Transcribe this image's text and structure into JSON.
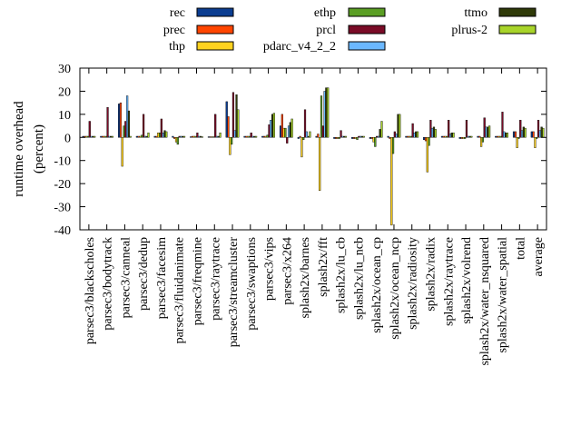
{
  "chart_data": {
    "type": "bar",
    "ylabel": "runtime overhead\n(percent)",
    "ylim": [
      -40,
      30
    ],
    "yticks": [
      -40,
      -30,
      -20,
      -10,
      0,
      10,
      20,
      30
    ],
    "grid": false,
    "legend_position": "top",
    "categories": [
      "parsec3/blackscholes",
      "parsec3/bodytrack",
      "parsec3/canneal",
      "parsec3/dedup",
      "parsec3/facesim",
      "parsec3/fluidanimate",
      "parsec3/freqmine",
      "parsec3/raytrace",
      "parsec3/streamcluster",
      "parsec3/swaptions",
      "parsec3/vips",
      "parsec3/x264",
      "splash2x/barnes",
      "splash2x/fft",
      "splash2x/lu_cb",
      "splash2x/lu_ncb",
      "splash2x/ocean_cp",
      "splash2x/ocean_ncp",
      "splash2x/radiosity",
      "splash2x/radix",
      "splash2x/raytrace",
      "splash2x/volrend",
      "splash2x/water_nsquared",
      "splash2x/water_spatial",
      "total",
      "average"
    ],
    "series": [
      {
        "name": "rec",
        "color": "#0b3d91",
        "values": [
          0.5,
          0.5,
          14.5,
          0.5,
          0.5,
          0.5,
          0.3,
          0.3,
          15.5,
          0.5,
          0.5,
          5.0,
          -0.5,
          0.5,
          -0.5,
          -0.5,
          -0.5,
          0.5,
          0.5,
          -1.0,
          0.5,
          -0.5,
          0.5,
          0.5,
          2.5,
          2.5
        ]
      },
      {
        "name": "prec",
        "color": "#ff4500",
        "values": [
          0.5,
          0.5,
          15.0,
          0.5,
          0.5,
          -0.5,
          0.5,
          0.3,
          9.0,
          0.5,
          0.5,
          10.0,
          0.5,
          1.5,
          -0.5,
          -0.5,
          -0.5,
          -0.5,
          0.5,
          -1.5,
          0.5,
          -0.5,
          0.5,
          0.5,
          2.5,
          2.5
        ]
      },
      {
        "name": "thp",
        "color": "#ffd21f",
        "values": [
          0.5,
          0.5,
          -12.5,
          0.5,
          2.0,
          -2.0,
          0.5,
          0.3,
          -7.5,
          0.5,
          0.5,
          4.0,
          -8.5,
          -23.0,
          -0.5,
          -0.5,
          -2.0,
          -38.0,
          0.5,
          -15.0,
          0.5,
          -0.5,
          -4.0,
          0.5,
          -4.5,
          -4.5
        ]
      },
      {
        "name": "ethp",
        "color": "#5a9e24",
        "values": [
          0.5,
          0.5,
          5.0,
          1.0,
          2.0,
          -3.0,
          0.5,
          0.3,
          -3.0,
          0.5,
          1.0,
          4.0,
          -1.0,
          18.0,
          -0.5,
          -1.0,
          -4.0,
          -7.0,
          0.5,
          -3.5,
          0.5,
          -0.5,
          -2.0,
          0.5,
          -0.5,
          -0.5
        ]
      },
      {
        "name": "prcl",
        "color": "#7a0b27",
        "values": [
          7.0,
          13.0,
          7.0,
          10.0,
          8.0,
          0.5,
          2.0,
          10.0,
          19.5,
          2.0,
          5.5,
          -2.5,
          12.0,
          5.0,
          3.0,
          0.5,
          0.5,
          2.5,
          6.0,
          7.5,
          7.5,
          7.5,
          8.5,
          11.0,
          7.5,
          7.5
        ]
      },
      {
        "name": "pdarc_v4_2_2",
        "color": "#6bb8ff",
        "values": [
          0.5,
          0.5,
          18.0,
          0.5,
          2.0,
          0.5,
          0.5,
          0.5,
          3.0,
          0.5,
          7.5,
          5.0,
          2.5,
          20.0,
          0.5,
          0.5,
          0.5,
          1.5,
          2.0,
          4.0,
          1.5,
          0.5,
          4.5,
          2.5,
          3.0,
          3.0
        ]
      },
      {
        "name": "ttmo",
        "color": "#2f3a08",
        "values": [
          0.5,
          0.5,
          11.5,
          0.5,
          3.0,
          0.5,
          0.5,
          0.5,
          18.5,
          0.5,
          10.0,
          6.5,
          0.5,
          21.5,
          0.5,
          0.5,
          3.5,
          10.0,
          2.5,
          4.5,
          2.0,
          0.5,
          4.5,
          2.0,
          4.5,
          4.5
        ]
      },
      {
        "name": "plrus-2",
        "color": "#a8d42a",
        "values": [
          0.5,
          0.5,
          0.5,
          2.0,
          2.5,
          0.5,
          0.3,
          2.0,
          12.0,
          0.5,
          10.5,
          8.0,
          2.5,
          21.5,
          0.5,
          0.5,
          7.0,
          10.0,
          2.5,
          3.5,
          2.0,
          0.5,
          5.0,
          2.0,
          4.0,
          4.0
        ]
      }
    ]
  }
}
